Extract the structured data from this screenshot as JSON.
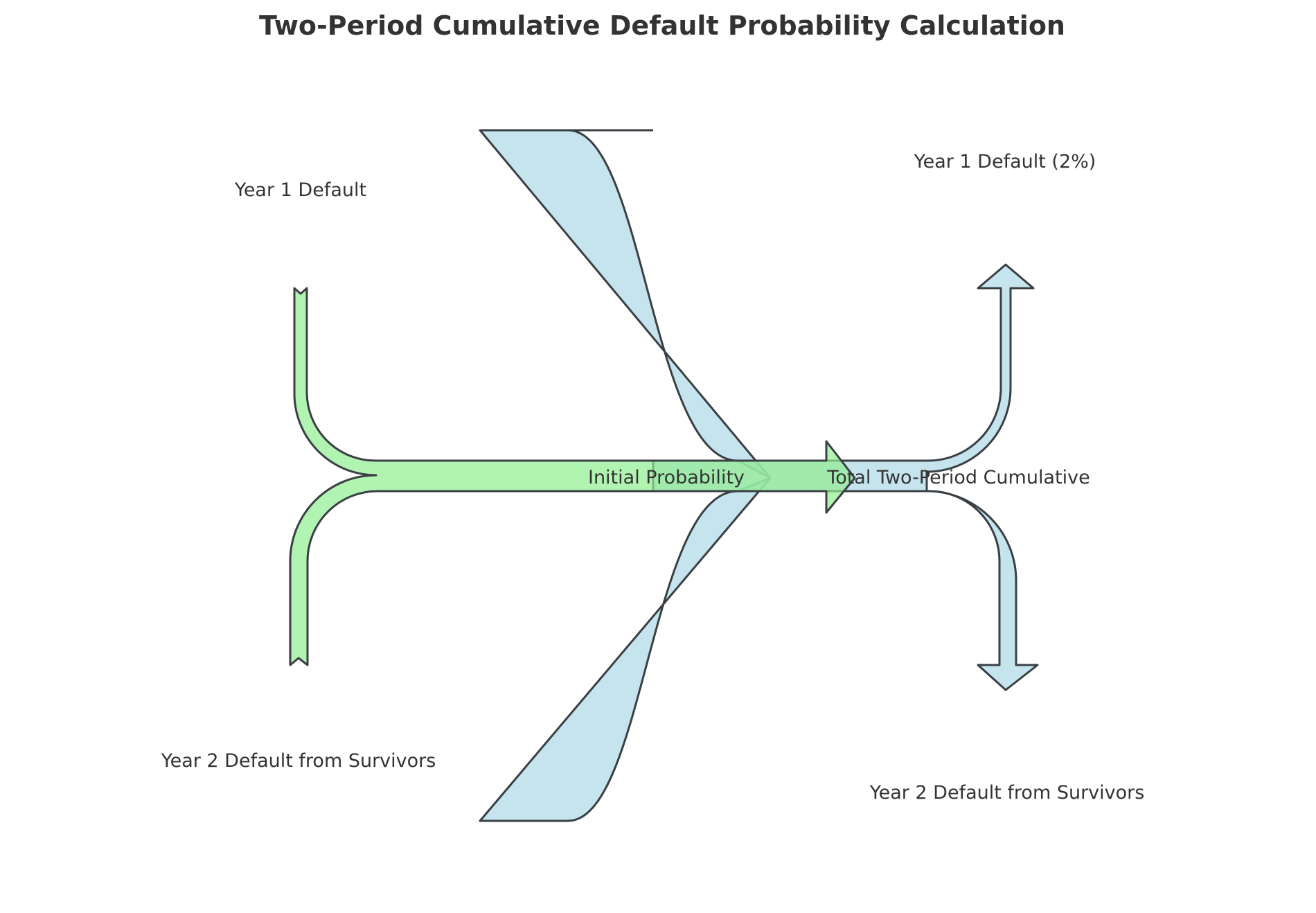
{
  "title": "Two-Period Cumulative Default Probability Calculation",
  "labels": {
    "left_top": "Year 1 Default",
    "left_bottom": "Year 2 Default from Survivors",
    "center_in": "Initial Probability",
    "center_out": "Total Two-Period Cumulative",
    "right_top": "Year 1 Default (2%)",
    "right_bottom": "Year 2 Default from Survivors"
  },
  "colors": {
    "green_flow": "#90ee90",
    "blue_flow": "#add8e6",
    "edge": "#3a3f44",
    "text": "#333333"
  }
}
